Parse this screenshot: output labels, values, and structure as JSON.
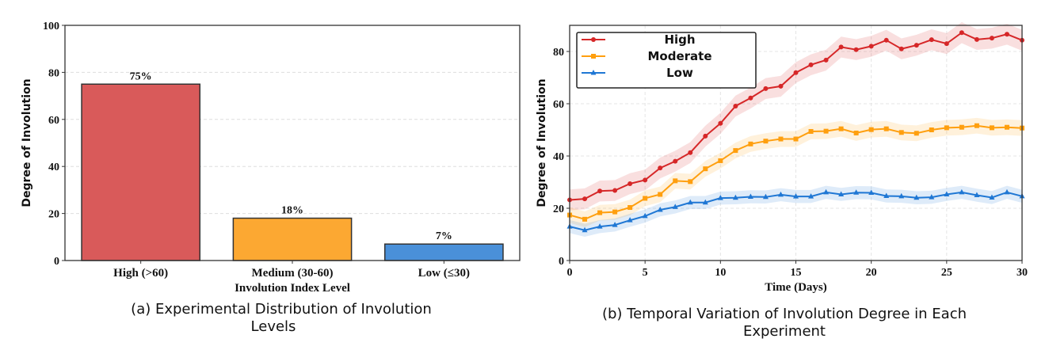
{
  "chart_data": [
    {
      "type": "bar",
      "categories": [
        "High (>60)",
        "Medium (30-60)",
        "Low (≤30)"
      ],
      "values": [
        75,
        18,
        7
      ],
      "data_labels": [
        "75%",
        "18%",
        "7%"
      ],
      "colors": [
        "#d95a5a",
        "#fca832",
        "#4a90d9"
      ],
      "xlabel": "Involution Index Level",
      "ylabel": "Degree of Involution",
      "ylim": [
        0,
        100
      ],
      "yticks": [
        0,
        20,
        40,
        60,
        80,
        100
      ],
      "grid": true,
      "caption": "(a)  Experimental Distribution of Involution Levels"
    },
    {
      "type": "line",
      "xlabel": "Time (Days)",
      "ylabel": "Degree of Involution",
      "xlim": [
        0,
        30
      ],
      "ylim": [
        0,
        90
      ],
      "xticks": [
        0,
        5,
        10,
        15,
        20,
        25,
        30
      ],
      "yticks": [
        0,
        20,
        40,
        60,
        80
      ],
      "grid": true,
      "legend": "top-left",
      "x": [
        0,
        1,
        2,
        3,
        4,
        5,
        6,
        7,
        8,
        9,
        10,
        11,
        12,
        13,
        14,
        15,
        16,
        17,
        18,
        19,
        20,
        21,
        22,
        23,
        24,
        25,
        26,
        27,
        28,
        29,
        30
      ],
      "series": [
        {
          "name": "High",
          "color": "#d62728",
          "marker": "circle",
          "band": 4,
          "values": [
            23.2,
            23.6,
            26.6,
            26.8,
            29.4,
            30.8,
            35.4,
            38,
            41.3,
            47.6,
            52.5,
            59.1,
            62.2,
            65.8,
            66.7,
            71.9,
            74.9,
            76.7,
            81.7,
            80.7,
            82,
            84.3,
            81,
            82.4,
            84.5,
            83,
            87.2,
            84.6,
            85.1,
            86.6,
            84.3
          ]
        },
        {
          "name": "Moderate",
          "color": "#ff9f0e",
          "marker": "square",
          "band": 3,
          "values": [
            17.4,
            15.8,
            18.3,
            18.6,
            20.3,
            23.8,
            25.3,
            30.5,
            30.2,
            35.1,
            38.2,
            42.1,
            44.6,
            45.7,
            46.5,
            46.5,
            49.4,
            49.5,
            50.4,
            48.8,
            50.1,
            50.4,
            49,
            48.7,
            50,
            50.8,
            51,
            51.6,
            50.8,
            51,
            50.7
          ]
        },
        {
          "name": "Low",
          "color": "#1f77d4",
          "marker": "triangle",
          "band": 2.5,
          "values": [
            13,
            11.6,
            13,
            13.6,
            15.4,
            17,
            19.4,
            20.5,
            22.2,
            22.2,
            23.9,
            24,
            24.4,
            24.3,
            25.2,
            24.5,
            24.5,
            26.1,
            25.3,
            26,
            25.9,
            24.7,
            24.6,
            24,
            24.2,
            25.3,
            26.1,
            25,
            24.1,
            26.1,
            24.6
          ]
        }
      ],
      "caption": "(b) Temporal Variation of Involution Degree in Each Experiment"
    }
  ]
}
